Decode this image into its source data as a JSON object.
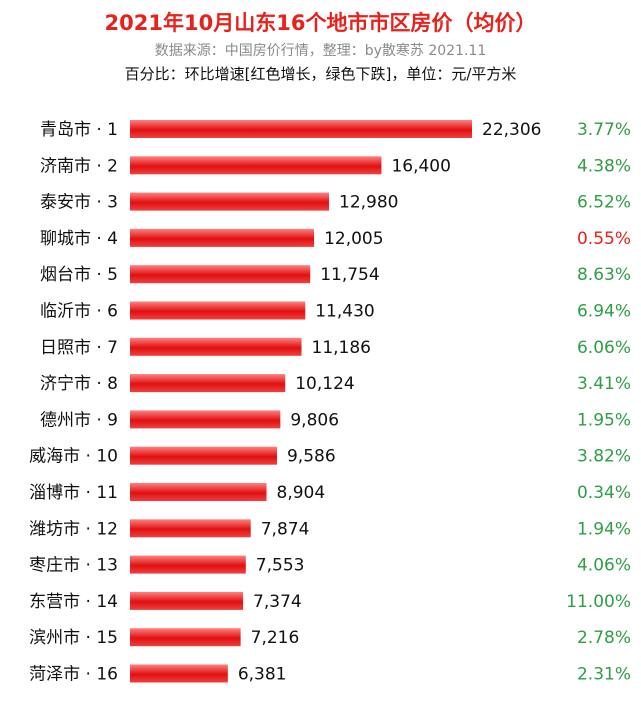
{
  "header": {
    "title": "2021年10月山东16个地市市区房价（均价）",
    "subtitle": "数据来源：中国房价行情，整理：by散寒苏 2021.11",
    "note": "百分比：环比增速[红色增长，绿色下跌]，单位：元/平方米"
  },
  "colors": {
    "bar_gradient_top": "#ff8080",
    "bar_gradient_mid": "#e01010",
    "bar_gradient_bottom": "#f04040",
    "pct_green": "#2e9e45",
    "pct_red": "#e8211a",
    "title_red": "#e8211a"
  },
  "chart_data": {
    "type": "bar",
    "orientation": "horizontal",
    "title": "2021年10月山东16个地市市区房价（均价）",
    "xlabel": "",
    "ylabel": "",
    "grid": false,
    "legend": "none",
    "categories": [
      "青岛市 · 1",
      "济南市 · 2",
      "泰安市 · 3",
      "聊城市 · 4",
      "烟台市 · 5",
      "临沂市 · 6",
      "日照市 · 7",
      "济宁市 · 8",
      "德州市 · 9",
      "威海市 · 10",
      "淄博市 · 11",
      "潍坊市 · 12",
      "枣庄市 · 13",
      "东营市 · 14",
      "滨州市 · 15",
      "菏泽市 · 16"
    ],
    "values": [
      22306,
      16400,
      12980,
      12005,
      11754,
      11430,
      11186,
      10124,
      9806,
      9586,
      8904,
      7874,
      7553,
      7374,
      7216,
      6381
    ],
    "value_labels": [
      "22,306",
      "16,400",
      "12,980",
      "12,005",
      "11,754",
      "11,430",
      "11,186",
      "10,124",
      "9,806",
      "9,586",
      "8,904",
      "7,874",
      "7,553",
      "7,374",
      "7,216",
      "6,381"
    ],
    "pct_labels": [
      "3.77%",
      "4.38%",
      "6.52%",
      "0.55%",
      "8.63%",
      "6.94%",
      "6.06%",
      "3.41%",
      "1.95%",
      "3.82%",
      "0.34%",
      "1.94%",
      "4.06%",
      "11.00%",
      "2.78%",
      "2.31%"
    ],
    "pct_colors": [
      "green",
      "green",
      "green",
      "red",
      "green",
      "green",
      "green",
      "green",
      "green",
      "green",
      "green",
      "green",
      "green",
      "green",
      "green",
      "green"
    ]
  }
}
